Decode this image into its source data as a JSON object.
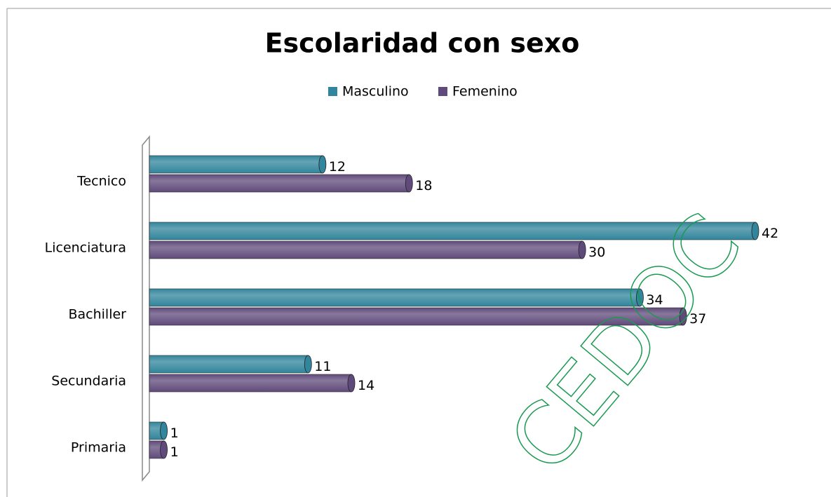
{
  "chart_data": {
    "type": "bar",
    "orientation": "horizontal",
    "title": "Escolaridad con sexo",
    "categories": [
      "Tecnico",
      "Licenciatura",
      "Bachiller",
      "Secundaria",
      "Primaria"
    ],
    "series": [
      {
        "name": "Masculino",
        "color": "#31859c",
        "values": [
          12,
          42,
          34,
          11,
          1
        ]
      },
      {
        "name": "Femenino",
        "color": "#604a7b",
        "values": [
          18,
          30,
          37,
          14,
          1
        ]
      }
    ],
    "legend": "top",
    "watermark": "CEDOC"
  }
}
